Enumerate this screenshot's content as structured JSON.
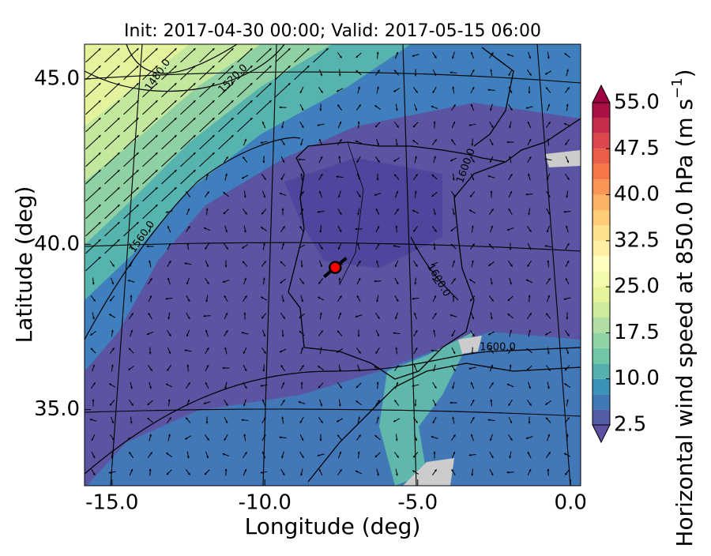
{
  "chart_data": {
    "type": "map",
    "title": "Init: 2017-04-30 00:00; Valid: 2017-05-15 06:00",
    "x_label": "Longitude (deg)",
    "y_label": "Latitude (deg)",
    "xlim": [
      -15.9,
      0.33
    ],
    "ylim": [
      32.7,
      46.05
    ],
    "xticks": [
      {
        "value": -15,
        "label": "-15.0"
      },
      {
        "value": -10,
        "label": "-10.0"
      },
      {
        "value": -5,
        "label": "-5.0"
      },
      {
        "value": 0,
        "label": "0.0"
      }
    ],
    "yticks": [
      {
        "value": 35,
        "label": "35.0"
      },
      {
        "value": 40,
        "label": "40.0"
      },
      {
        "value": 45,
        "label": "45.0"
      }
    ],
    "colorbar": {
      "label": "Horizontal wind speed at 850.0 hPa (m s",
      "label_exponent": "−1",
      "label_end": ")",
      "range": [
        2.5,
        55
      ],
      "ticks": [
        {
          "value": 2.5,
          "label": "2.5"
        },
        {
          "value": 10,
          "label": "10.0"
        },
        {
          "value": 17.5,
          "label": "17.5"
        },
        {
          "value": 25,
          "label": "25.0"
        },
        {
          "value": 32.5,
          "label": "32.5"
        },
        {
          "value": 40,
          "label": "40.0"
        },
        {
          "value": 47.5,
          "label": "47.5"
        },
        {
          "value": 55,
          "label": "55.0"
        }
      ],
      "colors": [
        "#5e4fa2",
        "#3288bd",
        "#66c2a5",
        "#abdda4",
        "#e6f598",
        "#ffffbf",
        "#fee08b",
        "#fdae61",
        "#f46d43",
        "#d53e4f",
        "#9e0142"
      ]
    },
    "contour_labels": [
      "1480.0",
      "1520.0",
      "1560.0",
      "1600.0",
      "1600.0",
      "1600.0"
    ],
    "marker": {
      "lon": -7.7,
      "lat": 39.3,
      "color": "#ff0000"
    }
  }
}
